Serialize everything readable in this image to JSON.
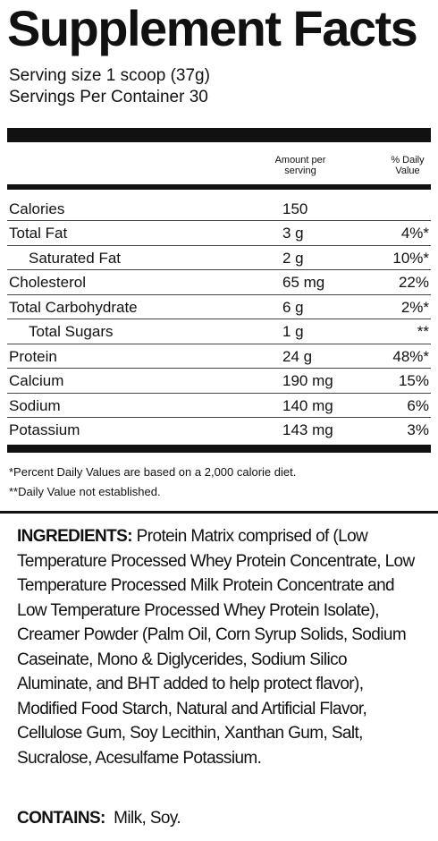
{
  "title": "Supplement Facts",
  "serving_size": "Serving size 1 scoop (37g)",
  "servings_per_container": "Servings Per Container 30",
  "columns": {
    "amount": "Amount per serving",
    "daily_value": "% Daily Value"
  },
  "nutrients": [
    {
      "name": "Calories",
      "amount": "150",
      "dv": ""
    },
    {
      "name": "Total Fat",
      "amount": "3 g",
      "dv": "4%*"
    },
    {
      "name": "Saturated Fat",
      "amount": "2 g",
      "dv": "10%*"
    },
    {
      "name": "Cholesterol",
      "amount": "65 mg",
      "dv": "22%"
    },
    {
      "name": "Total Carbohydrate",
      "amount": "6 g",
      "dv": "2%*"
    },
    {
      "name": "Total Sugars",
      "amount": "1 g",
      "dv": "**"
    },
    {
      "name": "Protein",
      "amount": "24 g",
      "dv": "48%*"
    },
    {
      "name": "Calcium",
      "amount": "190 mg",
      "dv": "15%"
    },
    {
      "name": "Sodium",
      "amount": "140 mg",
      "dv": "6%"
    },
    {
      "name": "Potassium",
      "amount": "143 mg",
      "dv": "3%"
    }
  ],
  "footnotes": [
    "*Percent Daily Values are based on a 2,000 calorie diet.",
    "**Daily Value not established."
  ],
  "ingredients": {
    "label": "INGREDIENTS:",
    "text": "Protein Matrix comprised of (Low Temperature Processed Whey Protein Concentrate, Low Temperature Processed Milk Protein Concentrate and Low Temperature Processed Whey Protein Isolate), Creamer Powder (Palm Oil, Corn Syrup Solids, Sodium Caseinate, Mono & Diglycerides, Sodium Silico Aluminate, and BHT added to help protect flavor), Modified Food Starch, Natural and Artificial Flavor, Cellulose Gum, Soy Lecithin, Xanthan Gum, Salt, Sucralose, Acesulfame Potassium."
  },
  "contains": {
    "label": "CONTAINS:",
    "text": "Milk, Soy."
  }
}
